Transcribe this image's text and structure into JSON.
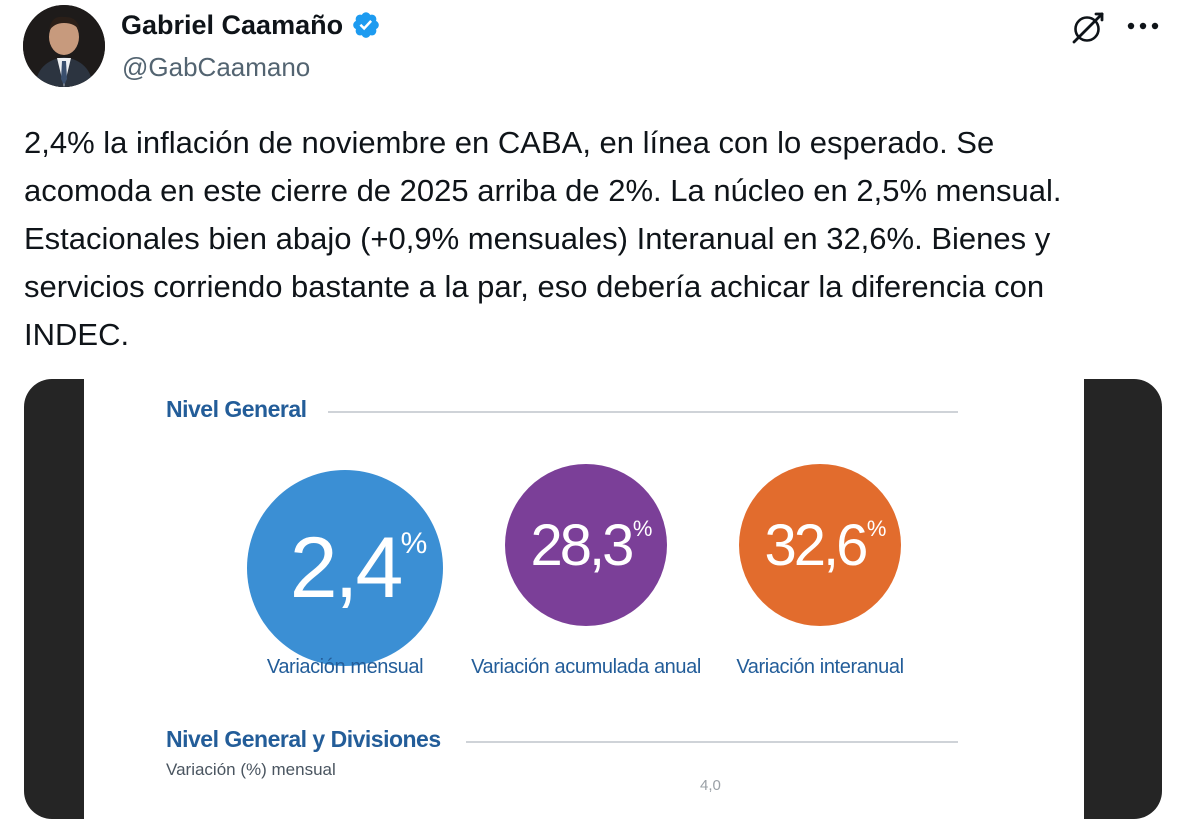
{
  "author": {
    "display_name": "Gabriel Caamaño",
    "handle": "@GabCaamano",
    "verified_color": "#1d9bf0"
  },
  "actions": {
    "grok_icon": "grok-icon",
    "more_icon": "more-icon"
  },
  "tweet": {
    "text": "2,4% la inflación de noviembre en CABA, en línea con lo esperado. Se\nacomoda en este cierre de 2025 arriba de 2%. La núcleo en 2,5% mensual.\nEstacionales bien abajo (+0,9% mensuales) Interanual en 32,6%. Bienes y\nservicios corriendo bastante a la par, eso debería achicar la diferencia con\nINDEC."
  },
  "infographic": {
    "section1_title": "Nivel General",
    "stats": [
      {
        "value": "2,4",
        "sign": "%",
        "label": "Variación mensual",
        "color": "#3b8fd4"
      },
      {
        "value": "28,3",
        "sign": "%",
        "label": "Variación acumulada anual",
        "color": "#7b3f98"
      },
      {
        "value": "32,6",
        "sign": "%",
        "label": "Variación interanual",
        "color": "#e26c2d"
      }
    ],
    "section2_title": "Nivel General y Divisiones",
    "section2_subtitle": "Variación (%) mensual",
    "axis_tick": "4,0"
  }
}
